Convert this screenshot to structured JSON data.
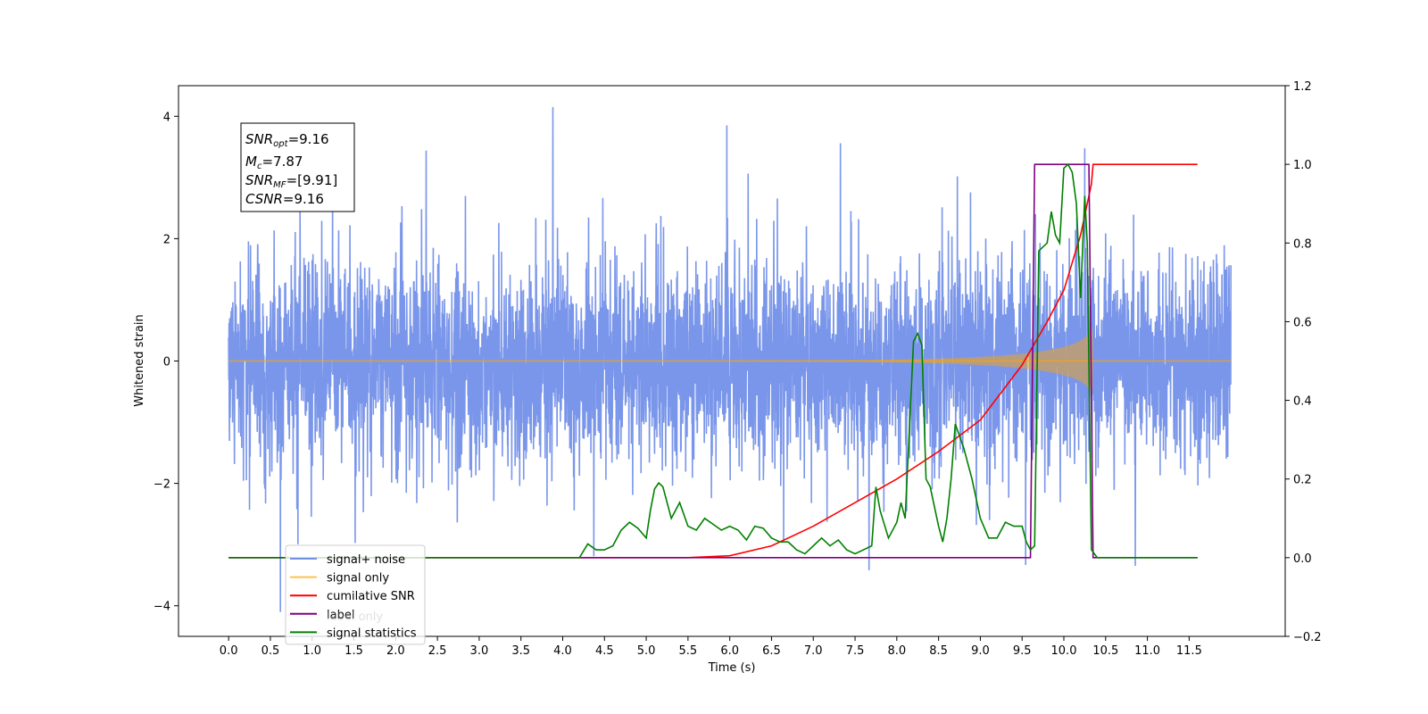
{
  "chart_data": {
    "type": "line",
    "title": "",
    "xlabel": "Time (s)",
    "ylabel": "Whitened strain",
    "y2label": "",
    "xlim": [
      -0.6,
      12.65
    ],
    "ylim": [
      -4.5,
      4.5
    ],
    "y2lim": [
      -0.2,
      1.2
    ],
    "x_ticks": [
      "0.0",
      "0.5",
      "1.0",
      "1.5",
      "2.0",
      "2.5",
      "3.0",
      "3.5",
      "4.0",
      "4.5",
      "5.0",
      "5.5",
      "6.0",
      "6.5",
      "7.0",
      "7.5",
      "8.0",
      "8.5",
      "9.0",
      "9.5",
      "10.0",
      "10.5",
      "11.0",
      "11.5"
    ],
    "y_ticks": [
      -4,
      -2,
      0,
      2,
      4
    ],
    "y2_ticks": [
      "−0.2",
      "0.0",
      "0.2",
      "0.4",
      "0.6",
      "0.8",
      "1.0",
      "1.2"
    ],
    "info_box": {
      "snr_opt": {
        "base": "SNR",
        "sub": "opt",
        "value": "=9.16"
      },
      "mc": {
        "base": "M",
        "sub": "c",
        "value": "=7.87"
      },
      "snr_mf": {
        "base": "SNR",
        "sub": "MF",
        "value": "=[9.91]"
      },
      "csnr": {
        "base": "CSNR",
        "value": "=9.16"
      }
    },
    "legend_position": "lower-left",
    "series": [
      {
        "name": "signal+ noise",
        "color": "#4169e1",
        "axis": "left",
        "kind": "noise",
        "amplitude": 2.2,
        "x_range": [
          0.0,
          12.0
        ]
      },
      {
        "name": "signal only",
        "color": "#ffa500",
        "axis": "left",
        "kind": "chirp",
        "merger_time": 10.35,
        "peak_amplitude": 0.6
      },
      {
        "name": "cumilative SNR",
        "color": "#ff0000",
        "axis": "right",
        "points": [
          [
            0,
            0
          ],
          [
            5.5,
            0
          ],
          [
            6,
            0.005
          ],
          [
            6.5,
            0.03
          ],
          [
            7,
            0.08
          ],
          [
            7.5,
            0.14
          ],
          [
            8,
            0.2
          ],
          [
            8.5,
            0.27
          ],
          [
            9,
            0.35
          ],
          [
            9.5,
            0.49
          ],
          [
            9.8,
            0.6
          ],
          [
            10,
            0.68
          ],
          [
            10.2,
            0.82
          ],
          [
            10.33,
            0.95
          ],
          [
            10.35,
            1.0
          ],
          [
            11.6,
            1.0
          ]
        ]
      },
      {
        "name": "label",
        "color": "#800080",
        "axis": "right",
        "points": [
          [
            0,
            0
          ],
          [
            9.6,
            0
          ],
          [
            9.65,
            1
          ],
          [
            10.3,
            1
          ],
          [
            10.35,
            0
          ],
          [
            11.6,
            0
          ]
        ]
      },
      {
        "name": "label only",
        "color": "#a0a0a0",
        "axis": "right",
        "points": []
      },
      {
        "name": "signal statistics",
        "color": "#008000",
        "axis": "right",
        "points": [
          [
            0,
            0
          ],
          [
            4.2,
            0
          ],
          [
            4.3,
            0.035
          ],
          [
            4.4,
            0.02
          ],
          [
            4.5,
            0.02
          ],
          [
            4.6,
            0.03
          ],
          [
            4.7,
            0.07
          ],
          [
            4.8,
            0.09
          ],
          [
            4.9,
            0.075
          ],
          [
            5.0,
            0.05
          ],
          [
            5.05,
            0.12
          ],
          [
            5.1,
            0.175
          ],
          [
            5.15,
            0.19
          ],
          [
            5.2,
            0.18
          ],
          [
            5.3,
            0.1
          ],
          [
            5.4,
            0.14
          ],
          [
            5.5,
            0.08
          ],
          [
            5.6,
            0.07
          ],
          [
            5.7,
            0.1
          ],
          [
            5.8,
            0.085
          ],
          [
            5.9,
            0.07
          ],
          [
            6.0,
            0.08
          ],
          [
            6.1,
            0.07
          ],
          [
            6.2,
            0.045
          ],
          [
            6.3,
            0.08
          ],
          [
            6.4,
            0.075
          ],
          [
            6.5,
            0.05
          ],
          [
            6.6,
            0.04
          ],
          [
            6.7,
            0.04
          ],
          [
            6.8,
            0.02
          ],
          [
            6.9,
            0.01
          ],
          [
            7.0,
            0.03
          ],
          [
            7.1,
            0.05
          ],
          [
            7.2,
            0.03
          ],
          [
            7.3,
            0.045
          ],
          [
            7.4,
            0.02
          ],
          [
            7.5,
            0.01
          ],
          [
            7.6,
            0.02
          ],
          [
            7.7,
            0.03
          ],
          [
            7.75,
            0.18
          ],
          [
            7.8,
            0.12
          ],
          [
            7.9,
            0.05
          ],
          [
            8.0,
            0.09
          ],
          [
            8.05,
            0.14
          ],
          [
            8.1,
            0.1
          ],
          [
            8.2,
            0.55
          ],
          [
            8.25,
            0.57
          ],
          [
            8.3,
            0.54
          ],
          [
            8.35,
            0.2
          ],
          [
            8.4,
            0.18
          ],
          [
            8.5,
            0.08
          ],
          [
            8.55,
            0.04
          ],
          [
            8.6,
            0.1
          ],
          [
            8.65,
            0.2
          ],
          [
            8.7,
            0.34
          ],
          [
            8.8,
            0.28
          ],
          [
            8.9,
            0.2
          ],
          [
            9.0,
            0.1
          ],
          [
            9.1,
            0.05
          ],
          [
            9.2,
            0.05
          ],
          [
            9.3,
            0.09
          ],
          [
            9.4,
            0.08
          ],
          [
            9.5,
            0.08
          ],
          [
            9.55,
            0.04
          ],
          [
            9.6,
            0.02
          ],
          [
            9.65,
            0.03
          ],
          [
            9.7,
            0.78
          ],
          [
            9.8,
            0.8
          ],
          [
            9.85,
            0.88
          ],
          [
            9.9,
            0.82
          ],
          [
            9.95,
            0.8
          ],
          [
            10.0,
            0.99
          ],
          [
            10.05,
            1.0
          ],
          [
            10.1,
            0.98
          ],
          [
            10.15,
            0.9
          ],
          [
            10.2,
            0.66
          ],
          [
            10.25,
            0.92
          ],
          [
            10.28,
            0.8
          ],
          [
            10.33,
            0.02
          ],
          [
            10.4,
            0.0
          ],
          [
            11.6,
            0.0
          ]
        ]
      }
    ]
  }
}
